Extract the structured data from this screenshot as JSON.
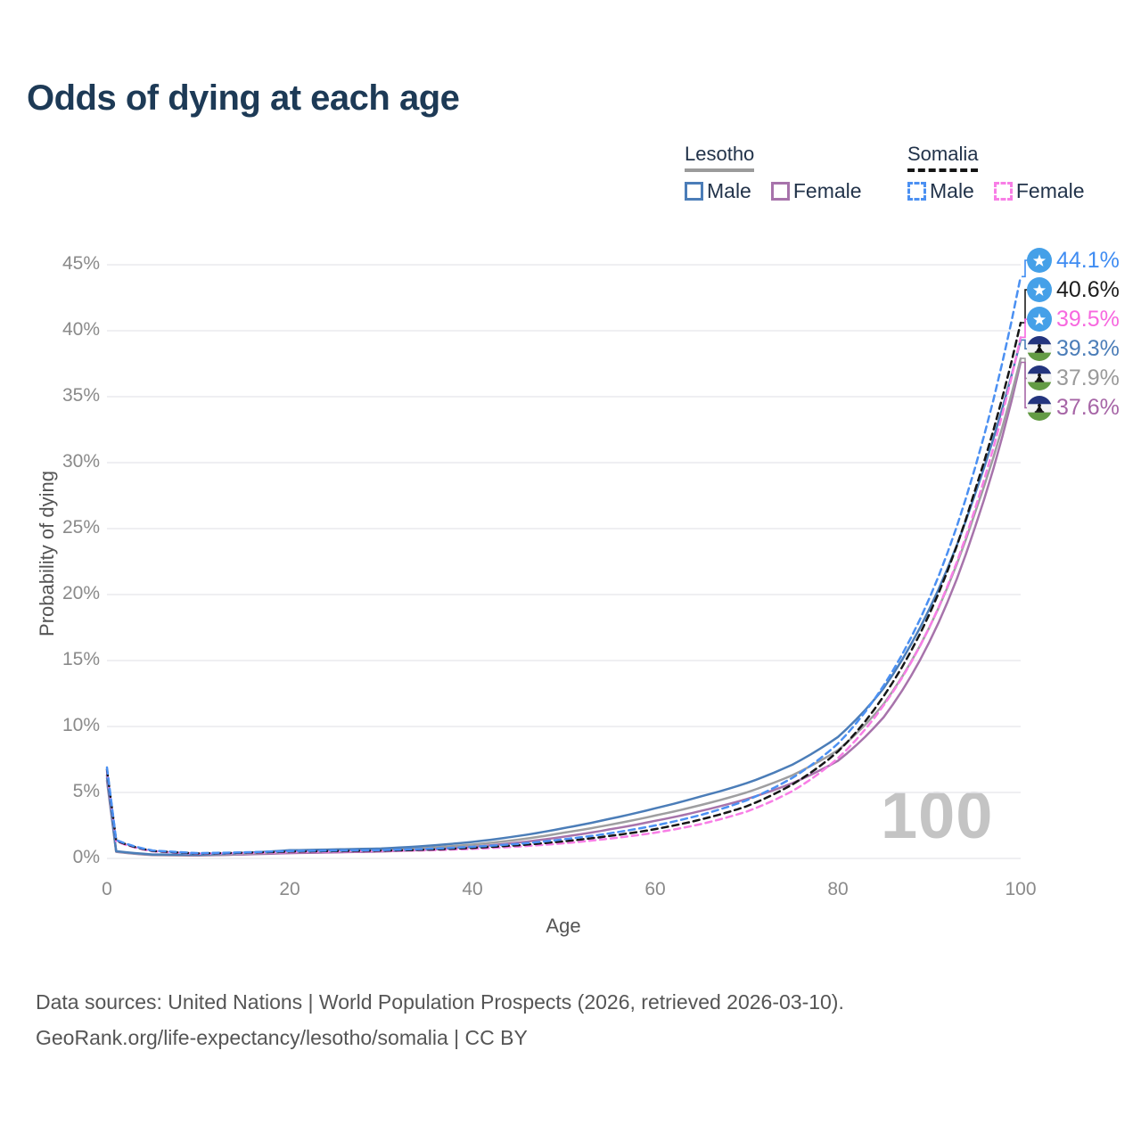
{
  "title": "Odds of dying at each age",
  "legend": {
    "groups": [
      {
        "label": "Lesotho",
        "line_style": "solid",
        "items": [
          {
            "label": "Male"
          },
          {
            "label": "Female"
          }
        ]
      },
      {
        "label": "Somalia",
        "line_style": "dashed",
        "items": [
          {
            "label": "Male"
          },
          {
            "label": "Female"
          }
        ]
      }
    ]
  },
  "footer": {
    "line1": "Data sources: United Nations | World Population Prospects (2026, retrieved 2026-03-10).",
    "line2": "GeoRank.org/life-expectancy/lesotho/somalia | CC BY"
  },
  "colors": {
    "title": "#1d3a56",
    "grid": "#eaeaee",
    "tick_text": "#8a8a8a",
    "watermark": "#c4c4c4"
  },
  "chart_data": {
    "type": "line",
    "title": "Odds of dying at each age",
    "xlabel": "Age",
    "ylabel": "Probability of dying",
    "watermark": "100",
    "xlim": [
      0,
      100
    ],
    "ylim_percent": [
      0,
      45
    ],
    "x_ticks": [
      0,
      20,
      40,
      60,
      80,
      100
    ],
    "y_ticks_percent": [
      0,
      5,
      10,
      15,
      20,
      25,
      30,
      35,
      40,
      45
    ],
    "grid": "horizontal",
    "legend_position": "top-right",
    "ages": [
      0,
      1,
      5,
      10,
      15,
      20,
      25,
      30,
      35,
      40,
      45,
      50,
      55,
      60,
      65,
      70,
      75,
      80,
      85,
      90,
      95,
      100
    ],
    "series": [
      {
        "name": "Somalia Male",
        "country": "Somalia",
        "sex": "Male",
        "style": "dashed",
        "color": "#4b90f2",
        "label_color": "#3f8cf2",
        "flag": "somalia",
        "end_label": "44.1%",
        "values": [
          6.9,
          1.4,
          0.6,
          0.4,
          0.46,
          0.56,
          0.6,
          0.63,
          0.72,
          0.88,
          1.1,
          1.45,
          1.9,
          2.5,
          3.3,
          4.4,
          6.1,
          8.7,
          13.1,
          19.7,
          29.6,
          44.1
        ]
      },
      {
        "name": "Somalia Both sexes",
        "country": "Somalia",
        "sex": "Both",
        "style": "dashed",
        "color": "#161616",
        "label_color": "#1d1d1d",
        "flag": "somalia",
        "end_label": "40.6%",
        "values": [
          6.75,
          1.35,
          0.57,
          0.38,
          0.43,
          0.52,
          0.56,
          0.59,
          0.66,
          0.8,
          1.0,
          1.3,
          1.7,
          2.22,
          2.95,
          3.95,
          5.6,
          8.1,
          12.3,
          18.5,
          27.9,
          40.6
        ]
      },
      {
        "name": "Somalia Female",
        "country": "Somalia",
        "sex": "Female",
        "style": "dashed",
        "color": "#f87ee6",
        "label_color": "#f768df",
        "flag": "somalia",
        "end_label": "39.5%",
        "values": [
          6.6,
          1.3,
          0.54,
          0.36,
          0.4,
          0.47,
          0.52,
          0.55,
          0.61,
          0.72,
          0.9,
          1.15,
          1.5,
          1.95,
          2.6,
          3.55,
          5.1,
          7.6,
          11.6,
          17.5,
          26.5,
          39.5
        ]
      },
      {
        "name": "Lesotho Male",
        "country": "Lesotho",
        "sex": "Male",
        "style": "solid",
        "color": "#4b7db8",
        "label_color": "#4b7db8",
        "flag": "lesotho",
        "end_label": "39.3%",
        "values": [
          6.3,
          0.55,
          0.3,
          0.28,
          0.42,
          0.62,
          0.68,
          0.75,
          0.95,
          1.25,
          1.7,
          2.3,
          3.0,
          3.8,
          4.7,
          5.7,
          7.1,
          9.2,
          12.9,
          18.9,
          27.6,
          39.3
        ]
      },
      {
        "name": "Lesotho Both sexes",
        "country": "Lesotho",
        "sex": "Both",
        "style": "solid",
        "color": "#9e9ea0",
        "label_color": "#9a9a9a",
        "flag": "lesotho",
        "end_label": "37.9%",
        "values": [
          6.1,
          0.52,
          0.27,
          0.25,
          0.35,
          0.5,
          0.56,
          0.62,
          0.8,
          1.05,
          1.42,
          1.95,
          2.55,
          3.25,
          4.05,
          5.0,
          6.3,
          8.2,
          11.7,
          17.5,
          26.2,
          37.9
        ]
      },
      {
        "name": "Lesotho Female",
        "country": "Lesotho",
        "sex": "Female",
        "style": "solid",
        "color": "#a773ab",
        "label_color": "#a665a6",
        "flag": "lesotho",
        "end_label": "37.6%",
        "values": [
          5.9,
          0.5,
          0.25,
          0.22,
          0.3,
          0.4,
          0.46,
          0.52,
          0.66,
          0.88,
          1.2,
          1.65,
          2.2,
          2.85,
          3.6,
          4.5,
          5.7,
          7.4,
          10.7,
          16.4,
          25.1,
          37.6
        ]
      }
    ]
  }
}
